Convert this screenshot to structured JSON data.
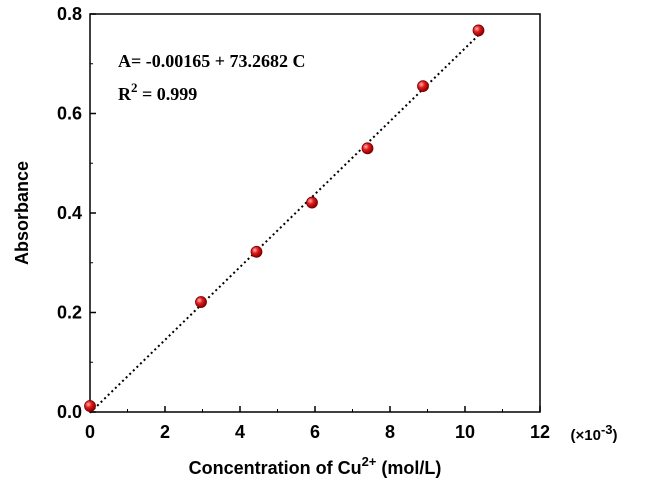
{
  "chart_data": {
    "type": "scatter",
    "title": "",
    "xlabel": "Concentration of Cu",
    "xlabel_sup": "2+",
    "xlabel_unit": " (mol/L)",
    "ylabel": "Absorbance",
    "x_multiplier": "(×10",
    "x_multiplier_sup": "-3",
    "x_multiplier_close": ")",
    "xlim": [
      0,
      12
    ],
    "ylim": [
      0,
      0.8
    ],
    "xticks": [
      "0",
      "2",
      "4",
      "6",
      "8",
      "10",
      "12"
    ],
    "yticks": [
      "0.0",
      "0.2",
      "0.4",
      "0.6",
      "0.8"
    ],
    "series": [
      {
        "x": [
          0.0,
          2.96,
          4.44,
          5.92,
          7.4,
          8.88,
          10.36
        ],
        "y": [
          0.012,
          0.221,
          0.322,
          0.421,
          0.53,
          0.655,
          0.767
        ],
        "marker_color": "#e31a1c"
      }
    ],
    "fit": {
      "intercept": -0.00165,
      "slope": 73.2682,
      "style": "dotted",
      "x_range": [
        0.0,
        10.36
      ]
    },
    "annotations": {
      "equation": "A= -0.00165 + 73.2682 C",
      "r2_label": "R",
      "r2_sup": "2",
      "r2_value": " = 0.999"
    },
    "grid": false
  }
}
